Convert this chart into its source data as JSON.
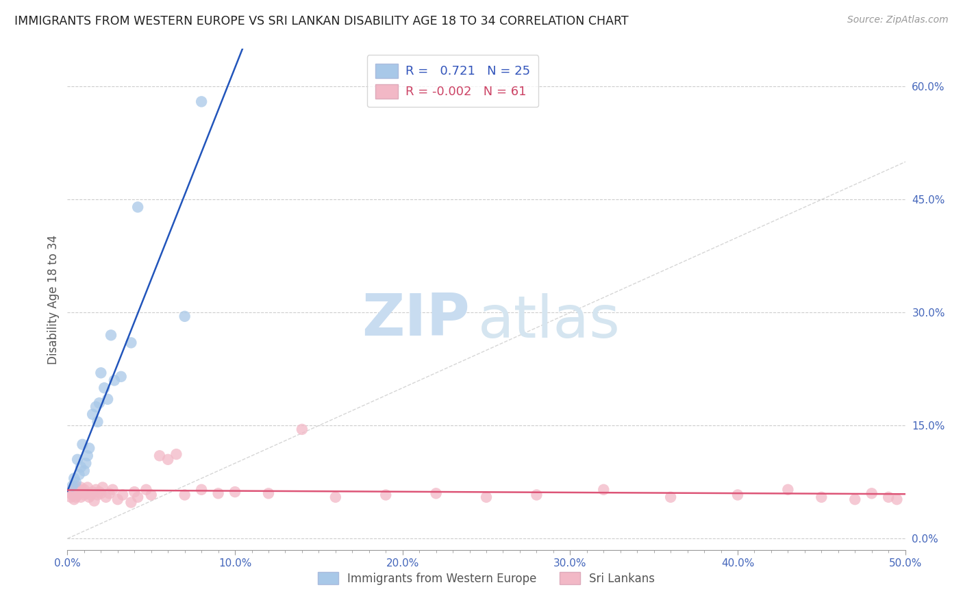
{
  "title": "IMMIGRANTS FROM WESTERN EUROPE VS SRI LANKAN DISABILITY AGE 18 TO 34 CORRELATION CHART",
  "source": "Source: ZipAtlas.com",
  "ylabel": "Disability Age 18 to 34",
  "xlim": [
    0.0,
    0.5
  ],
  "ylim": [
    -0.015,
    0.65
  ],
  "xticks": [
    0.0,
    0.1,
    0.2,
    0.3,
    0.4,
    0.5
  ],
  "xticklabels": [
    "0.0%",
    "10.0%",
    "20.0%",
    "30.0%",
    "40.0%",
    "50.0%"
  ],
  "yticks_right": [
    0.0,
    0.15,
    0.3,
    0.45,
    0.6
  ],
  "yticklabels_right": [
    "0.0%",
    "15.0%",
    "30.0%",
    "45.0%",
    "60.0%"
  ],
  "blue_R": 0.721,
  "blue_N": 25,
  "pink_R": -0.002,
  "pink_N": 61,
  "blue_color": "#A8C8E8",
  "pink_color": "#F2B8C6",
  "blue_line_color": "#2255BB",
  "pink_line_color": "#DD5577",
  "trendline_color": "#CCCCCC",
  "watermark_zip": "ZIP",
  "watermark_atlas": "atlas",
  "legend_label_blue": "Immigrants from Western Europe",
  "legend_label_pink": "Sri Lankans",
  "blue_x": [
    0.003,
    0.004,
    0.005,
    0.006,
    0.007,
    0.008,
    0.009,
    0.01,
    0.011,
    0.012,
    0.013,
    0.015,
    0.017,
    0.018,
    0.019,
    0.02,
    0.022,
    0.024,
    0.026,
    0.028,
    0.032,
    0.038,
    0.042,
    0.07,
    0.08
  ],
  "blue_y": [
    0.07,
    0.08,
    0.075,
    0.105,
    0.085,
    0.095,
    0.125,
    0.09,
    0.1,
    0.11,
    0.12,
    0.165,
    0.175,
    0.155,
    0.18,
    0.22,
    0.2,
    0.185,
    0.27,
    0.21,
    0.215,
    0.26,
    0.44,
    0.295,
    0.58
  ],
  "pink_x": [
    0.002,
    0.002,
    0.003,
    0.003,
    0.004,
    0.004,
    0.005,
    0.005,
    0.006,
    0.006,
    0.007,
    0.007,
    0.008,
    0.008,
    0.009,
    0.01,
    0.01,
    0.011,
    0.012,
    0.013,
    0.014,
    0.015,
    0.016,
    0.017,
    0.018,
    0.019,
    0.02,
    0.021,
    0.023,
    0.025,
    0.027,
    0.03,
    0.033,
    0.038,
    0.04,
    0.042,
    0.047,
    0.05,
    0.055,
    0.06,
    0.065,
    0.07,
    0.08,
    0.09,
    0.1,
    0.12,
    0.14,
    0.16,
    0.19,
    0.22,
    0.25,
    0.28,
    0.32,
    0.36,
    0.4,
    0.43,
    0.45,
    0.47,
    0.48,
    0.49,
    0.495
  ],
  "pink_y": [
    0.06,
    0.055,
    0.065,
    0.058,
    0.068,
    0.052,
    0.07,
    0.055,
    0.063,
    0.058,
    0.06,
    0.065,
    0.068,
    0.055,
    0.062,
    0.058,
    0.065,
    0.06,
    0.068,
    0.055,
    0.058,
    0.062,
    0.05,
    0.065,
    0.058,
    0.062,
    0.06,
    0.068,
    0.055,
    0.06,
    0.065,
    0.052,
    0.058,
    0.048,
    0.062,
    0.055,
    0.065,
    0.058,
    0.11,
    0.105,
    0.112,
    0.058,
    0.065,
    0.06,
    0.062,
    0.06,
    0.145,
    0.055,
    0.058,
    0.06,
    0.055,
    0.058,
    0.065,
    0.055,
    0.058,
    0.065,
    0.055,
    0.052,
    0.06,
    0.055,
    0.052
  ]
}
